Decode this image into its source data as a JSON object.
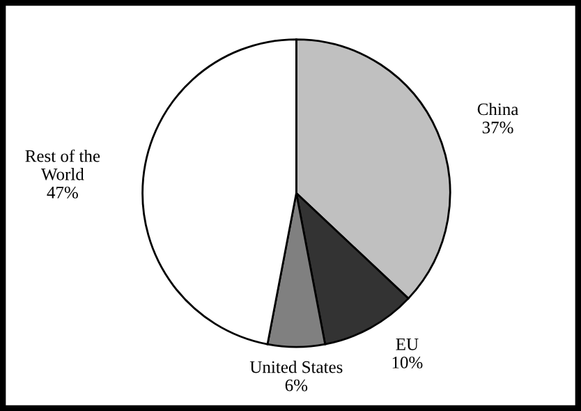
{
  "chart_data": {
    "type": "pie",
    "categories": [
      "China",
      "EU",
      "United States",
      "Rest of the World"
    ],
    "values": [
      37,
      10,
      6,
      47
    ],
    "colors": [
      "#c0c0c0",
      "#333333",
      "#808080",
      "#ffffff"
    ],
    "legend": false,
    "value_labels": [
      "37%",
      "10%",
      "6%",
      "47%"
    ]
  }
}
